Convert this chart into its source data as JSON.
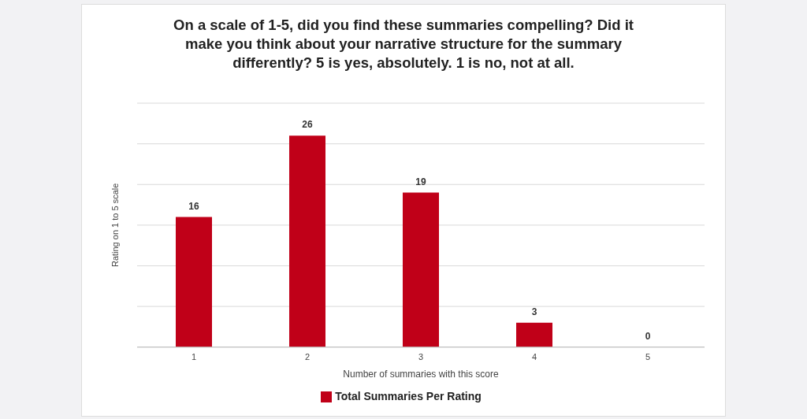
{
  "chart_data": {
    "type": "bar",
    "title": "On a scale of 1-5, did you find these summaries compelling? Did it make you think about your narrative structure for the summary differently? 5 is yes, absolutely. 1 is no, not at all.",
    "xlabel": "Number of summaries with this score",
    "ylabel": "Rating on 1 to 5 scale",
    "categories": [
      "1",
      "2",
      "3",
      "4",
      "5"
    ],
    "series": [
      {
        "name": "Total Summaries Per Rating",
        "color": "#c00018",
        "values": [
          16,
          26,
          19,
          3,
          0
        ]
      }
    ],
    "ylim": [
      0,
      30
    ],
    "tick_labels": "x",
    "grid": "y",
    "legend": "bottom",
    "data_labels": true
  }
}
